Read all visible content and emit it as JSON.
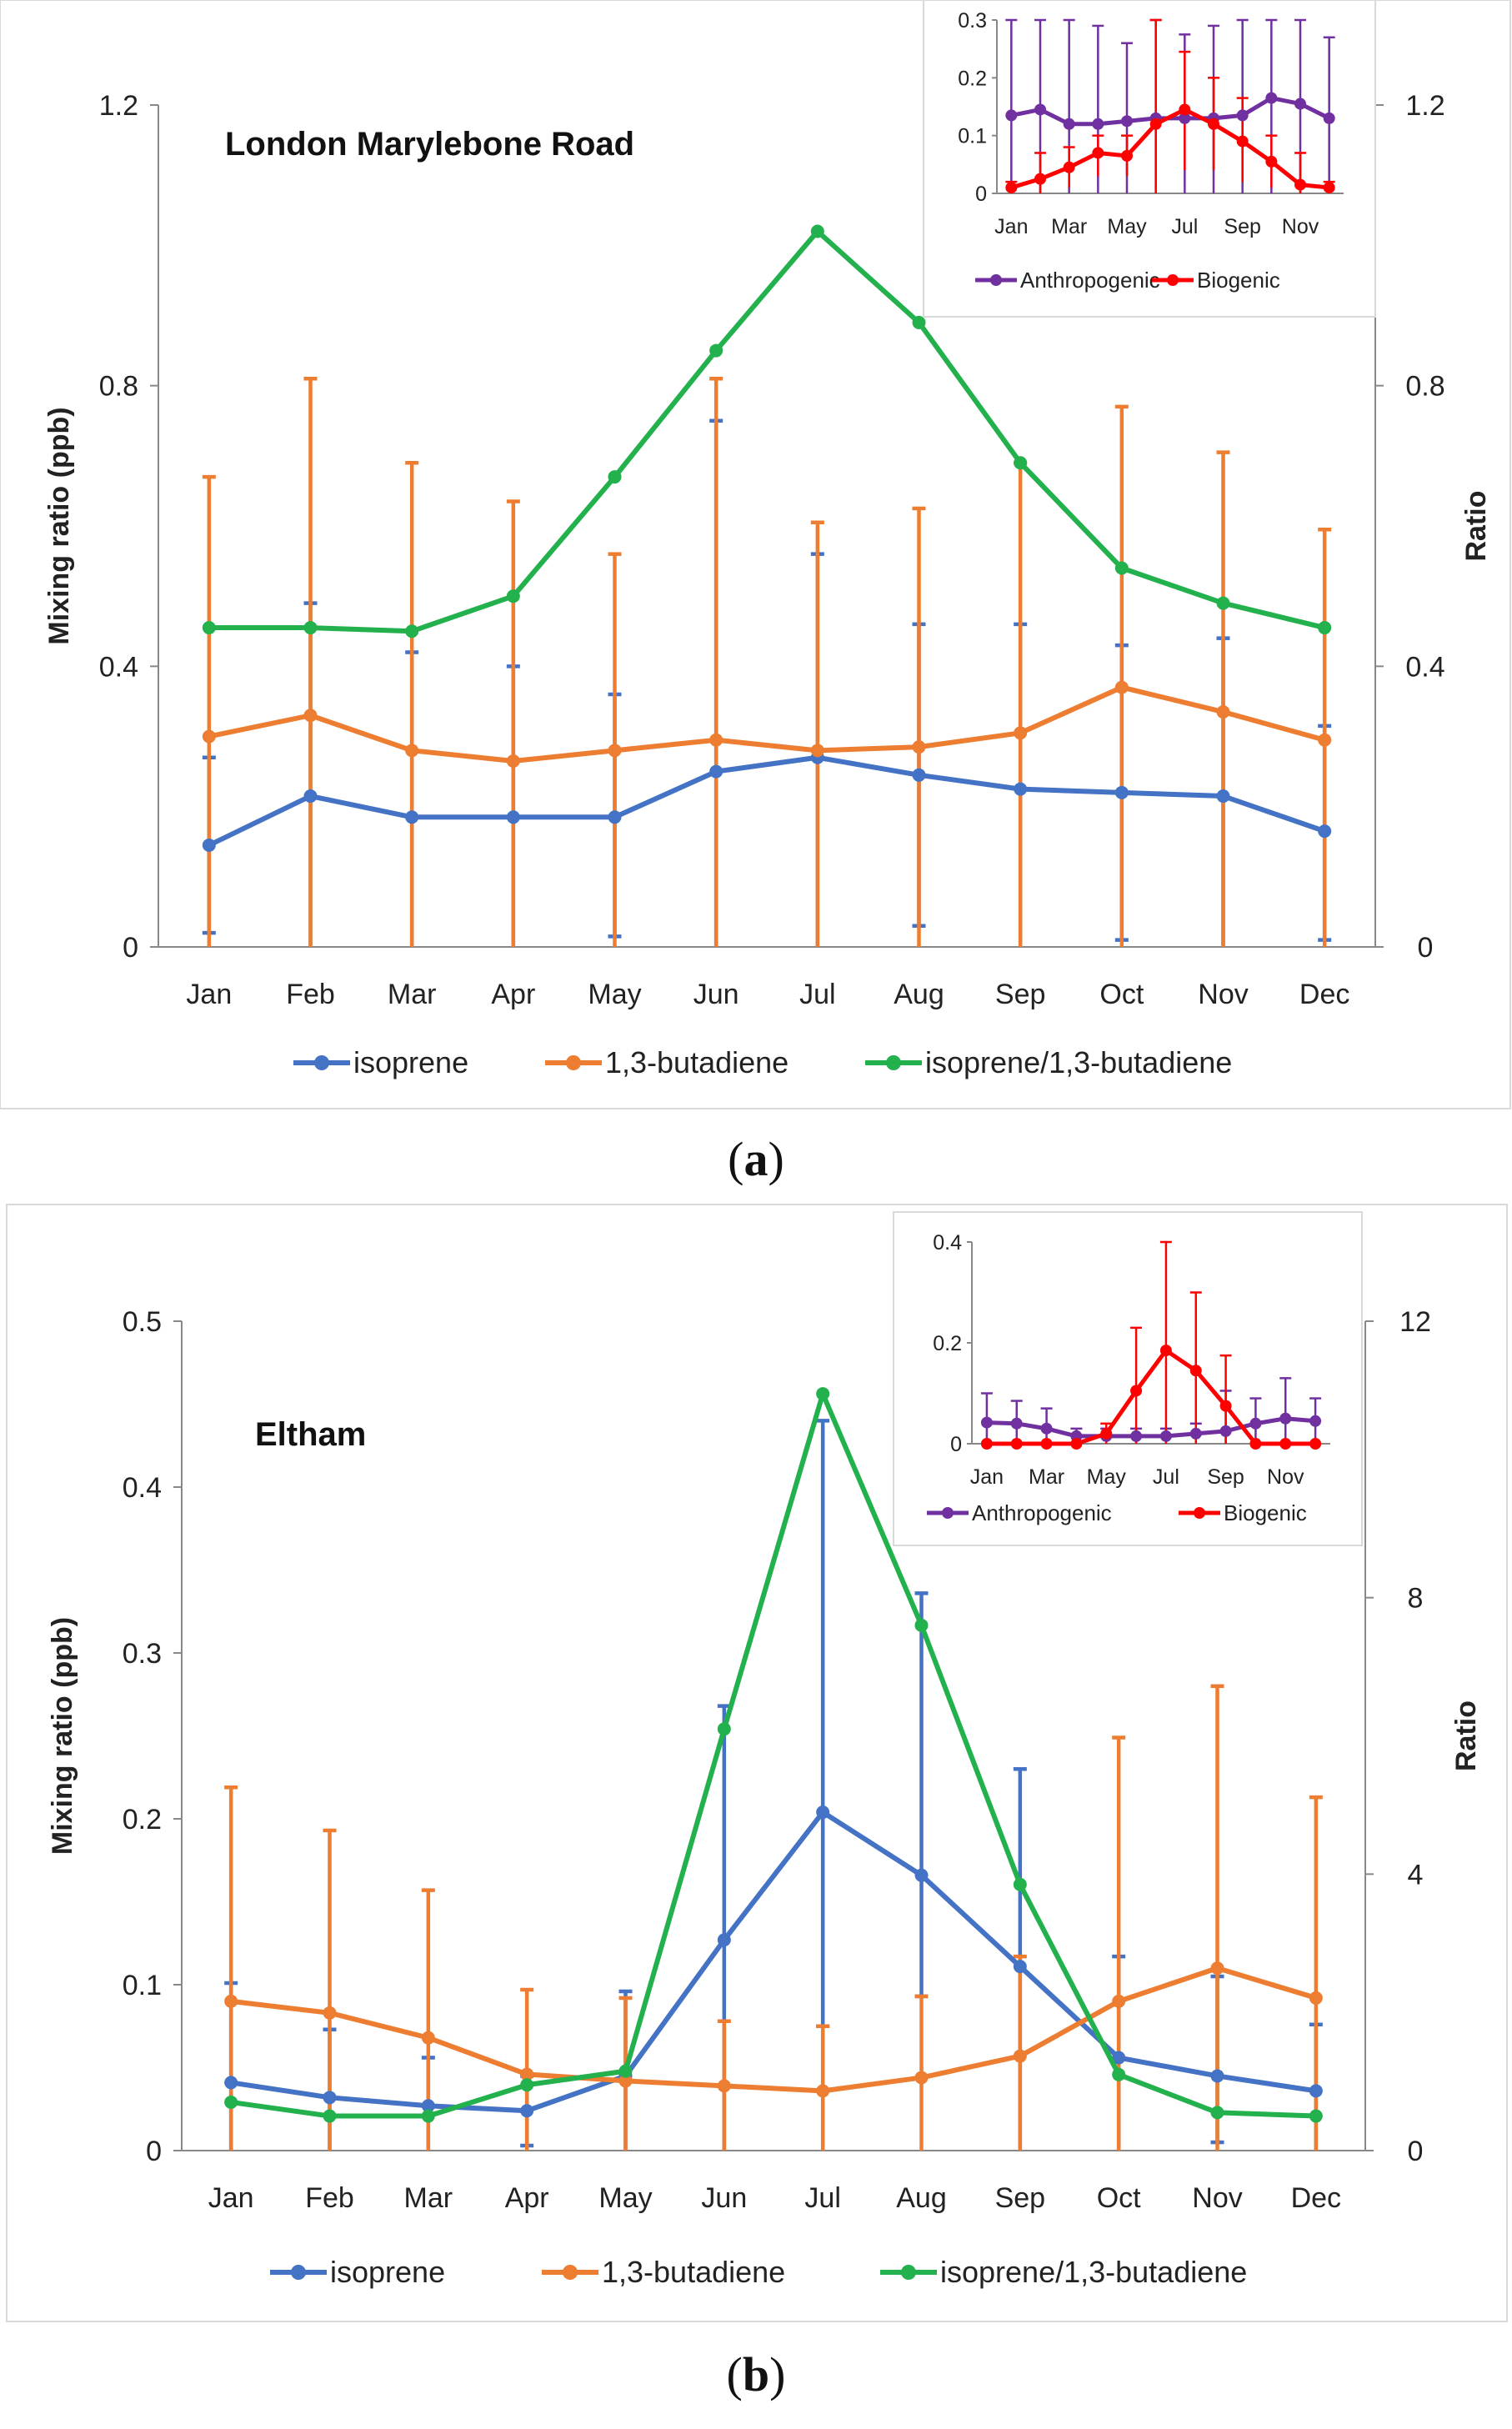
{
  "chart_data": [
    {
      "type": "line",
      "panel": "a",
      "title": "London Marylebone Road",
      "caption_letter": "a",
      "categories": [
        "Jan",
        "Feb",
        "Mar",
        "Apr",
        "May",
        "Jun",
        "Jul",
        "Aug",
        "Sep",
        "Oct",
        "Nov",
        "Dec"
      ],
      "ylabel": "Mixing ratio (ppb)",
      "y2label": "Ratio",
      "ylim": [
        0,
        1.2
      ],
      "y2lim": [
        0,
        1.2
      ],
      "yticks": [
        "0",
        "0.4",
        "0.8",
        "1.2"
      ],
      "y2ticks": [
        "0",
        "0.4",
        "0.8",
        "1.2"
      ],
      "series": [
        {
          "name": "isoprene",
          "axis": "left",
          "color": "#4472C4",
          "values": [
            0.145,
            0.215,
            0.185,
            0.185,
            0.185,
            0.25,
            0.27,
            0.245,
            0.225,
            0.22,
            0.215,
            0.165
          ],
          "err_lo": [
            0.02,
            0.0,
            0.0,
            0.0,
            0.015,
            0.0,
            0.0,
            0.03,
            0.0,
            0.01,
            0.0,
            0.01
          ],
          "err_hi": [
            0.27,
            0.49,
            0.42,
            0.4,
            0.36,
            0.75,
            0.56,
            0.46,
            0.46,
            0.43,
            0.44,
            0.315
          ]
        },
        {
          "name": "1,3-butadiene",
          "axis": "left",
          "color": "#ED7D31",
          "values": [
            0.3,
            0.33,
            0.28,
            0.265,
            0.28,
            0.295,
            0.28,
            0.285,
            0.305,
            0.37,
            0.335,
            0.295
          ],
          "err_lo": [
            0.0,
            0.0,
            0.0,
            0.0,
            0.0,
            0.0,
            0.0,
            0.0,
            0.0,
            0.0,
            0.0,
            0.0
          ],
          "err_hi": [
            0.67,
            0.81,
            0.69,
            0.635,
            0.56,
            0.81,
            0.605,
            0.625,
            0.69,
            0.77,
            0.705,
            0.595
          ]
        },
        {
          "name": "isoprene/1,3-butadiene",
          "axis": "right",
          "color": "#22B14C",
          "values": [
            0.455,
            0.455,
            0.45,
            0.5,
            0.67,
            0.85,
            1.02,
            0.89,
            0.69,
            0.54,
            0.49,
            0.455
          ]
        }
      ],
      "inset": {
        "categories": [
          "Jan",
          "Feb",
          "Mar",
          "Apr",
          "May",
          "Jun",
          "Jul",
          "Aug",
          "Sep",
          "Oct",
          "Nov",
          "Dec"
        ],
        "xticks": [
          "Jan",
          "Mar",
          "May",
          "Jul",
          "Sep",
          "Nov"
        ],
        "ylim": [
          0,
          0.3
        ],
        "yticks": [
          "0",
          "0.1",
          "0.2",
          "0.3"
        ],
        "series": [
          {
            "name": "Anthropogenic",
            "color": "#7030A0",
            "values": [
              0.135,
              0.145,
              0.12,
              0.12,
              0.125,
              0.13,
              0.13,
              0.13,
              0.135,
              0.165,
              0.155,
              0.13
            ],
            "err_hi": [
              0.3,
              0.3,
              0.3,
              0.29,
              0.26,
              0.3,
              0.275,
              0.29,
              0.3,
              0.3,
              0.3,
              0.27
            ],
            "err_lo": [
              0,
              0,
              0,
              0,
              0,
              0,
              0,
              0,
              0,
              0,
              0,
              0
            ]
          },
          {
            "name": "Biogenic",
            "color": "#FF0000",
            "values": [
              0.01,
              0.025,
              0.045,
              0.07,
              0.065,
              0.12,
              0.145,
              0.12,
              0.09,
              0.055,
              0.015,
              0.01
            ],
            "err_hi": [
              0.02,
              0.07,
              0.08,
              0.1,
              0.1,
              0.3,
              0.245,
              0.2,
              0.165,
              0.1,
              0.07,
              0.02
            ],
            "err_lo": [
              0,
              0,
              0.01,
              0.03,
              0.03,
              0,
              0.04,
              0.04,
              0.02,
              0.01,
              0,
              0
            ]
          }
        ]
      }
    },
    {
      "type": "line",
      "panel": "b",
      "title": "Eltham",
      "caption_letter": "b",
      "categories": [
        "Jan",
        "Feb",
        "Mar",
        "Apr",
        "May",
        "Jun",
        "Jul",
        "Aug",
        "Sep",
        "Oct",
        "Nov",
        "Dec"
      ],
      "ylabel": "Mixing ratio (ppb)",
      "y2label": "Ratio",
      "ylim": [
        0,
        0.5
      ],
      "y2lim": [
        0,
        12
      ],
      "yticks": [
        "0",
        "0.1",
        "0.2",
        "0.3",
        "0.4",
        "0.5"
      ],
      "y2ticks": [
        "0",
        "4",
        "8",
        "12"
      ],
      "series": [
        {
          "name": "isoprene",
          "axis": "left",
          "color": "#4472C4",
          "values": [
            0.041,
            0.032,
            0.027,
            0.024,
            0.045,
            0.127,
            0.204,
            0.166,
            0.111,
            0.056,
            0.045,
            0.036
          ],
          "err_lo": [
            0.0,
            0.0,
            0.0,
            0.003,
            0.0,
            0.0,
            0.075,
            0.093,
            0.0,
            0.0,
            0.005,
            0.0
          ],
          "err_hi": [
            0.101,
            0.073,
            0.056,
            0.045,
            0.096,
            0.268,
            0.44,
            0.336,
            0.23,
            0.117,
            0.105,
            0.076
          ]
        },
        {
          "name": "1,3-butadiene",
          "axis": "left",
          "color": "#ED7D31",
          "values": [
            0.09,
            0.083,
            0.068,
            0.046,
            0.042,
            0.039,
            0.036,
            0.044,
            0.057,
            0.09,
            0.11,
            0.092
          ],
          "err_lo": [
            0.0,
            0.0,
            0.0,
            0.0,
            0.0,
            0.0,
            0.0,
            0.0,
            0.0,
            0.0,
            0.0,
            0.0
          ],
          "err_hi": [
            0.219,
            0.193,
            0.157,
            0.097,
            0.092,
            0.078,
            0.075,
            0.093,
            0.117,
            0.249,
            0.28,
            0.213
          ]
        },
        {
          "name": "isoprene/1,3-butadiene",
          "axis": "right",
          "color": "#22B14C",
          "values": [
            0.7,
            0.5,
            0.5,
            0.95,
            1.15,
            6.1,
            10.95,
            7.6,
            3.85,
            1.1,
            0.55,
            0.5
          ]
        }
      ],
      "inset": {
        "categories": [
          "Jan",
          "Feb",
          "Mar",
          "Apr",
          "May",
          "Jun",
          "Jul",
          "Aug",
          "Sep",
          "Oct",
          "Nov",
          "Dec"
        ],
        "xticks": [
          "Jan",
          "Mar",
          "May",
          "Jul",
          "Sep",
          "Nov"
        ],
        "ylim": [
          0,
          0.4
        ],
        "yticks": [
          "0",
          "0.2",
          "0.4"
        ],
        "series": [
          {
            "name": "Anthropogenic",
            "color": "#7030A0",
            "values": [
              0.042,
              0.04,
              0.03,
              0.015,
              0.015,
              0.015,
              0.015,
              0.02,
              0.025,
              0.04,
              0.05,
              0.045
            ],
            "err_hi": [
              0.1,
              0.085,
              0.07,
              0.03,
              0.03,
              0.03,
              0.03,
              0.04,
              0.105,
              0.09,
              0.13,
              0.09
            ],
            "err_lo": [
              0,
              0,
              0,
              0,
              0,
              0,
              0,
              0,
              0,
              0,
              0,
              0
            ]
          },
          {
            "name": "Biogenic",
            "color": "#FF0000",
            "values": [
              0.0,
              0.0,
              0.0,
              0.0,
              0.02,
              0.105,
              0.185,
              0.145,
              0.075,
              0.0,
              0.0,
              0.0
            ],
            "err_hi": [
              0.0,
              0.0,
              0.0,
              0.0,
              0.04,
              0.23,
              0.4,
              0.3,
              0.175,
              0.0,
              0.0,
              0.0
            ],
            "err_lo": [
              0,
              0,
              0,
              0,
              0,
              0,
              0,
              0,
              0,
              0,
              0,
              0
            ]
          }
        ]
      }
    }
  ]
}
